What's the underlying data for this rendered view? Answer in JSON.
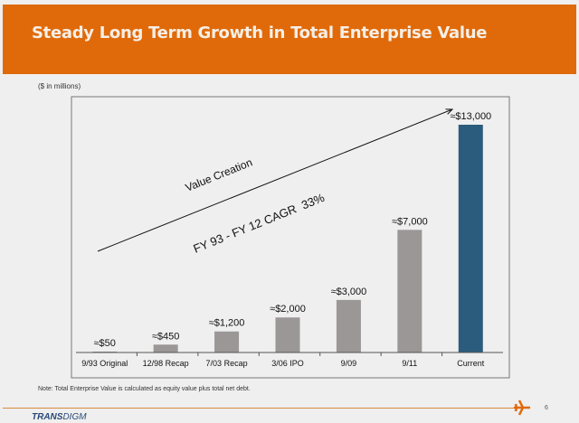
{
  "title": "Steady Long Term Growth in Total Enterprise Value",
  "units_note": "($ in millions)",
  "footnote": "Note: Total Enterprise Value is calculated as equity value plus total net debt.",
  "page_number": "6",
  "logo": {
    "bold": "TRANS",
    "light": "DIGM"
  },
  "colors": {
    "header": "#e06a0a",
    "bar": "#9a9796",
    "highlight_bar": "#2b5c7d"
  },
  "chart_data": {
    "type": "bar",
    "categories": [
      "9/93 Original",
      "12/98 Recap",
      "7/03 Recap",
      "3/06 IPO",
      "9/09",
      "9/11",
      "Current"
    ],
    "values": [
      50,
      450,
      1200,
      2000,
      3000,
      7000,
      13000
    ],
    "data_labels": [
      "≈$50",
      "≈$450",
      "≈$1,200",
      "≈$2,000",
      "≈$3,000",
      "≈$7,000",
      "≈$13,000"
    ],
    "highlighted_category": "Current",
    "ylabel": "($ in millions)",
    "annotations": [
      "Value Creation",
      "FY 93 - FY 12 CAGR  33%"
    ],
    "grid": false
  }
}
